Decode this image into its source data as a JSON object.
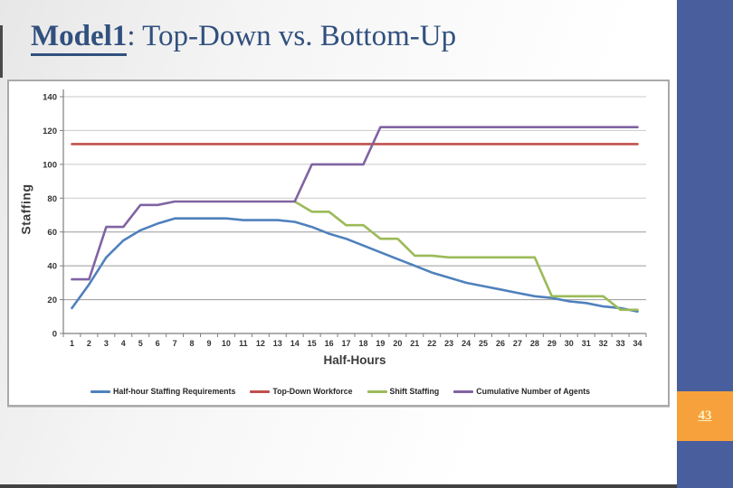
{
  "slide": {
    "title_main": "Model1",
    "title_rest": ": Top-Down vs. Bottom-Up",
    "page_number": "43"
  },
  "theme": {
    "title_color": "#31507E",
    "sidebar_blue": "#485E9D",
    "accent_orange": "#F7A13C",
    "bottom_strip": "#424242"
  },
  "chart_data": {
    "type": "line",
    "title": "",
    "xlabel": "Half-Hours",
    "ylabel": "Staffing",
    "x": [
      1,
      2,
      3,
      4,
      5,
      6,
      7,
      8,
      9,
      10,
      11,
      12,
      13,
      14,
      15,
      16,
      17,
      18,
      19,
      20,
      21,
      22,
      23,
      24,
      25,
      26,
      27,
      28,
      29,
      30,
      31,
      32,
      33,
      34
    ],
    "ylim": [
      0,
      140
    ],
    "ytick_step": 20,
    "grid": true,
    "legend_position": "bottom",
    "series": [
      {
        "name": "Half-hour Staffing Requirements",
        "color": "#4F81BD",
        "values": [
          15,
          29,
          45,
          55,
          61,
          65,
          68,
          68,
          68,
          68,
          67,
          67,
          67,
          66,
          63,
          59,
          56,
          52,
          48,
          44,
          40,
          36,
          33,
          30,
          28,
          26,
          24,
          22,
          21,
          19,
          18,
          16,
          15,
          13
        ]
      },
      {
        "name": "Top-Down Workforce",
        "color": "#C0504D",
        "values": [
          112,
          112,
          112,
          112,
          112,
          112,
          112,
          112,
          112,
          112,
          112,
          112,
          112,
          112,
          112,
          112,
          112,
          112,
          112,
          112,
          112,
          112,
          112,
          112,
          112,
          112,
          112,
          112,
          112,
          112,
          112,
          112,
          112,
          112
        ]
      },
      {
        "name": "Shift Staffing",
        "color": "#9BBB59",
        "values": [
          null,
          null,
          null,
          null,
          null,
          null,
          null,
          null,
          null,
          null,
          null,
          null,
          null,
          78,
          72,
          72,
          64,
          64,
          56,
          56,
          46,
          46,
          45,
          45,
          45,
          45,
          45,
          45,
          22,
          22,
          22,
          22,
          14,
          14
        ]
      },
      {
        "name": "Cumulative Number of Agents",
        "color": "#8064A2",
        "values": [
          32,
          32,
          63,
          63,
          76,
          76,
          78,
          78,
          78,
          78,
          78,
          78,
          78,
          78,
          100,
          100,
          100,
          100,
          122,
          122,
          122,
          122,
          122,
          122,
          122,
          122,
          122,
          122,
          122,
          122,
          122,
          122,
          122,
          122
        ]
      }
    ]
  }
}
